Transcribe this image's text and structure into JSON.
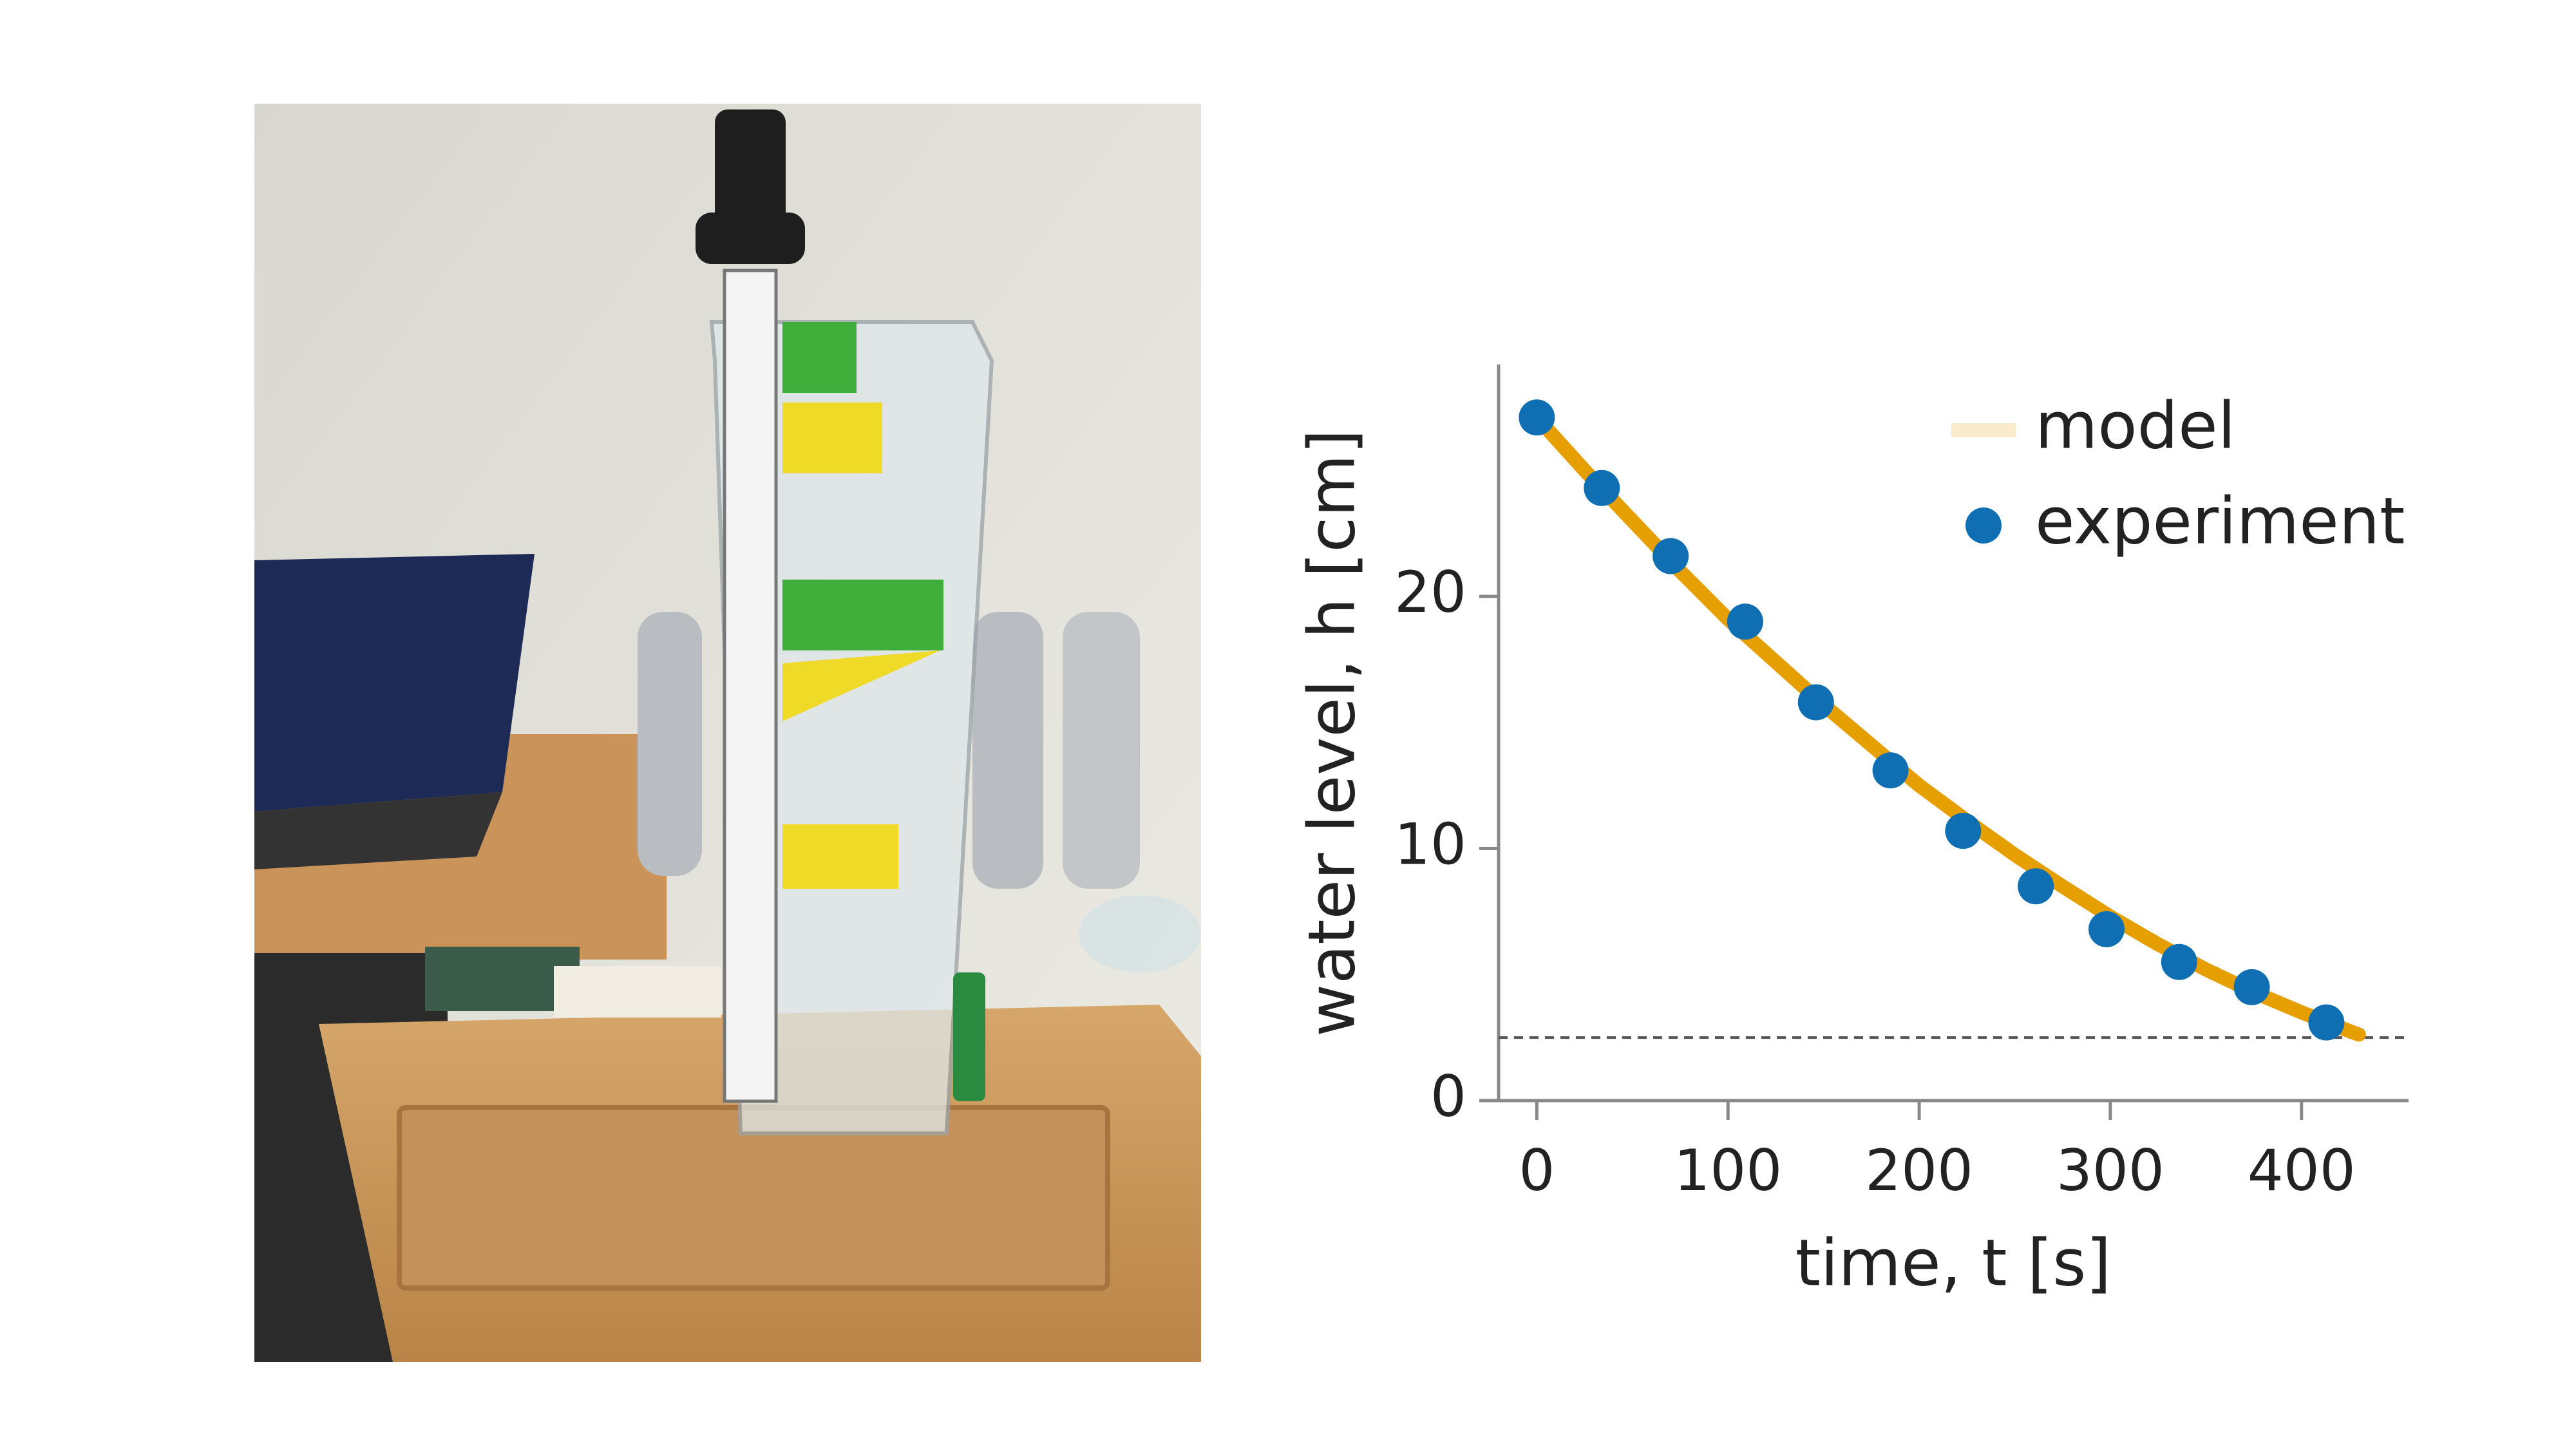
{
  "chart_data": {
    "type": "scatter",
    "xlabel": "time, t [s]",
    "ylabel": "water level, h [cm]",
    "xlim": [
      -20,
      456
    ],
    "ylim": [
      0,
      29.2
    ],
    "xticks": [
      0,
      100,
      200,
      300,
      400
    ],
    "yticks": [
      0,
      10,
      20
    ],
    "grid": false,
    "legend": "upper right",
    "reference_line": 2.5,
    "series": [
      {
        "name": "model",
        "color": "#e69f00",
        "style": "line",
        "x": [
          0,
          25,
          50,
          75,
          100,
          125,
          150,
          175,
          200,
          225,
          250,
          275,
          300,
          325,
          350,
          375,
          400,
          425,
          430
        ],
        "values": [
          27.1,
          25.0,
          23.0,
          21.0,
          19.1,
          17.4,
          15.7,
          14.1,
          12.5,
          11.1,
          9.75,
          8.5,
          7.3,
          6.2,
          5.2,
          4.3,
          3.5,
          2.76,
          2.62
        ]
      },
      {
        "name": "experiment",
        "color": "#0f6fb2",
        "style": "marker",
        "x": [
          0,
          34,
          70,
          109,
          146,
          185,
          223,
          261,
          298,
          336,
          374,
          413
        ],
        "values": [
          27.1,
          24.3,
          21.6,
          19.0,
          15.8,
          13.1,
          10.7,
          8.5,
          6.8,
          5.5,
          4.5,
          3.1
        ]
      }
    ]
  }
}
